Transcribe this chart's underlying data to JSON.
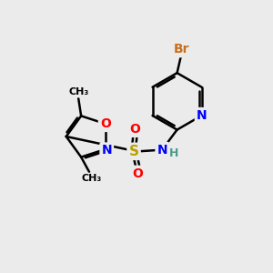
{
  "background_color": "#ebebeb",
  "bond_color": "#000000",
  "bond_width": 1.8,
  "atom_colors": {
    "C": "#000000",
    "H": "#4a9a8a",
    "N": "#0000ff",
    "O": "#ff0000",
    "S": "#b8a000",
    "Br": "#c87020"
  },
  "font_size": 9,
  "fig_size": [
    3.0,
    3.0
  ],
  "dpi": 100
}
